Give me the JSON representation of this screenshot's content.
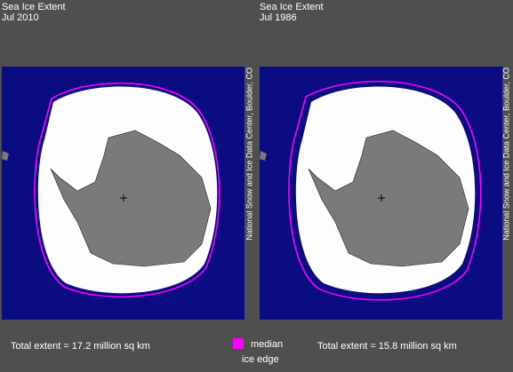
{
  "panels": [
    {
      "title": "Sea Ice Extent",
      "date": "Jul 2010",
      "credit": "National Snow and Ice Data Center, Boulder, CO",
      "total": "Total extent = 17.2 million sq km"
    },
    {
      "title": "Sea Ice Extent",
      "date": "Jul 1986",
      "credit": "National Snow and Ice Data Center, Boulder, CO",
      "total": "Total extent = 15.8 million sq km"
    }
  ],
  "legend": {
    "line1": "median",
    "line2": "ice edge"
  }
}
